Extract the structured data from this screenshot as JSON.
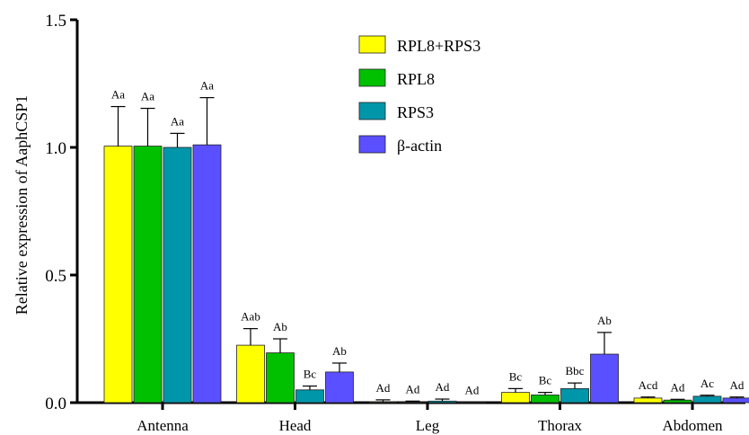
{
  "chart_data": {
    "type": "bar",
    "ylabel": "Relative expression of AaphCSP1",
    "xlabel": "",
    "ylim": [
      0,
      1.5
    ],
    "yticks": [
      "0.0",
      "0.5",
      "1.0",
      "1.5"
    ],
    "ytick_values": [
      0,
      0.5,
      1.0,
      1.5
    ],
    "categories": [
      "Antenna",
      "Head",
      "Leg",
      "Thorax",
      "Abdomen"
    ],
    "legend_position": "top-right",
    "grid": false,
    "series": [
      {
        "name": "RPL8+RPS3",
        "color": "#ffff00",
        "values": [
          1.005,
          0.225,
          0.003,
          0.04,
          0.018
        ],
        "errors": [
          0.155,
          0.065,
          0.008,
          0.015,
          0.004
        ],
        "labels": [
          "Aa",
          "Aab",
          "Ad",
          "Bc",
          "Acd"
        ]
      },
      {
        "name": "RPL8",
        "color": "#00c000",
        "values": [
          1.005,
          0.195,
          0.002,
          0.03,
          0.01
        ],
        "errors": [
          0.148,
          0.055,
          0.004,
          0.01,
          0.003
        ],
        "labels": [
          "Aa",
          "Ab",
          "Ad",
          "Bc",
          "Ad"
        ]
      },
      {
        "name": "RPS3",
        "color": "#0096aa",
        "values": [
          1.0,
          0.05,
          0.006,
          0.055,
          0.025
        ],
        "errors": [
          0.055,
          0.015,
          0.008,
          0.022,
          0.004
        ],
        "labels": [
          "Aa",
          "Bc",
          "Ad",
          "Bbc",
          "Ac"
        ]
      },
      {
        "name": "β-actin",
        "color": "#5a50ff",
        "values": [
          1.01,
          0.12,
          0.001,
          0.19,
          0.018
        ],
        "errors": [
          0.185,
          0.035,
          0.001,
          0.085,
          0.004
        ],
        "labels": [
          "Aa",
          "Ab",
          "Ad",
          "Ab",
          "Ad"
        ]
      }
    ]
  }
}
